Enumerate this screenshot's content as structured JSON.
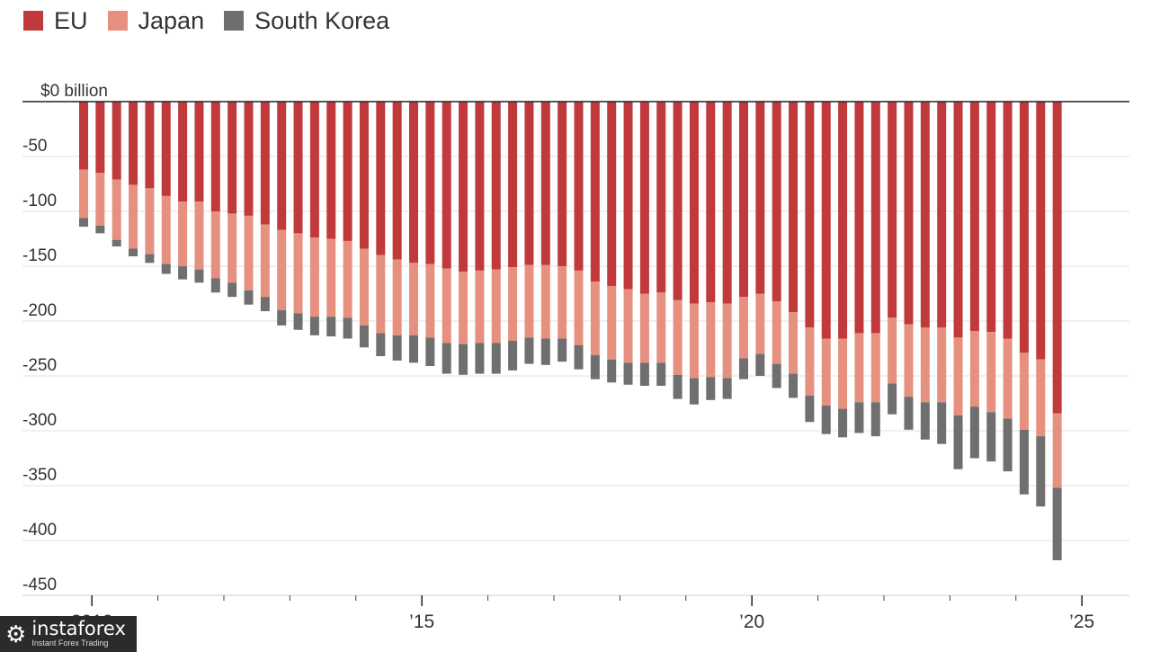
{
  "legend": [
    {
      "label": "EU",
      "color": "#c0393b"
    },
    {
      "label": "Japan",
      "color": "#e6917f"
    },
    {
      "label": "South Korea",
      "color": "#6f6f6f"
    }
  ],
  "watermark": {
    "brand": "instaforex",
    "tagline": "Instant Forex Trading",
    "icon": "gear-person-icon"
  },
  "chart_data": {
    "type": "bar",
    "stacked": true,
    "title": "",
    "xlabel": "",
    "ylabel": "",
    "ylim": [
      -450,
      0
    ],
    "grid": true,
    "legend_position": "top-left",
    "y_ticks": [
      {
        "value": 0,
        "label": "$0 billion"
      },
      {
        "value": -50,
        "label": "-50"
      },
      {
        "value": -100,
        "label": "-100"
      },
      {
        "value": -150,
        "label": "-150"
      },
      {
        "value": -200,
        "label": "-200"
      },
      {
        "value": -250,
        "label": "-250"
      },
      {
        "value": -300,
        "label": "-300"
      },
      {
        "value": -350,
        "label": "-350"
      },
      {
        "value": -400,
        "label": "-400"
      },
      {
        "value": -450,
        "label": "-450"
      }
    ],
    "x_major_labels": [
      {
        "index": 1,
        "label": "2010"
      },
      {
        "index": 21,
        "label": "’15"
      },
      {
        "index": 41,
        "label": "’20"
      },
      {
        "index": 61,
        "label": "’25"
      }
    ],
    "x_minor_tick_indices": [
      5,
      9,
      13,
      17,
      25,
      29,
      33,
      37,
      45,
      49,
      53,
      57
    ],
    "x_domain": [
      0,
      62
    ],
    "series": [
      {
        "name": "EU",
        "color": "#c0393b",
        "values": [
          -62,
          -65,
          -71,
          -76,
          -79,
          -86,
          -91,
          -91,
          -100,
          -102,
          -104,
          -112,
          -117,
          -120,
          -124,
          -125,
          -127,
          -134,
          -140,
          -144,
          -147,
          -148,
          -152,
          -155,
          -154,
          -153,
          -151,
          -149,
          -149,
          -150,
          -154,
          -164,
          -168,
          -171,
          -175,
          -174,
          -181,
          -184,
          -183,
          -184,
          -178,
          -175,
          -182,
          -192,
          -206,
          -216,
          -216,
          -211,
          -211,
          -197,
          -203,
          -206,
          -206,
          -215,
          -209,
          -210,
          -216,
          -229,
          -235,
          -284
        ]
      },
      {
        "name": "Japan",
        "color": "#e6917f",
        "values": [
          -44,
          -48,
          -55,
          -58,
          -60,
          -62,
          -59,
          -62,
          -61,
          -63,
          -68,
          -66,
          -73,
          -73,
          -72,
          -71,
          -70,
          -70,
          -71,
          -69,
          -66,
          -67,
          -68,
          -66,
          -66,
          -67,
          -67,
          -66,
          -67,
          -66,
          -68,
          -67,
          -67,
          -67,
          -63,
          -64,
          -68,
          -68,
          -68,
          -68,
          -56,
          -55,
          -57,
          -56,
          -62,
          -61,
          -64,
          -63,
          -63,
          -60,
          -66,
          -68,
          -68,
          -71,
          -69,
          -73,
          -73,
          -70,
          -70,
          -68
        ]
      },
      {
        "name": "South Korea",
        "color": "#6f6f6f",
        "values": [
          -8,
          -7,
          -6,
          -7,
          -8,
          -9,
          -12,
          -12,
          -13,
          -13,
          -13,
          -13,
          -14,
          -15,
          -17,
          -18,
          -19,
          -20,
          -21,
          -23,
          -25,
          -26,
          -28,
          -28,
          -28,
          -28,
          -27,
          -24,
          -24,
          -21,
          -22,
          -22,
          -21,
          -20,
          -21,
          -21,
          -22,
          -24,
          -21,
          -19,
          -19,
          -20,
          -22,
          -22,
          -24,
          -26,
          -26,
          -28,
          -31,
          -28,
          -30,
          -34,
          -38,
          -49,
          -47,
          -45,
          -48,
          -59,
          -64,
          -66
        ]
      }
    ]
  }
}
